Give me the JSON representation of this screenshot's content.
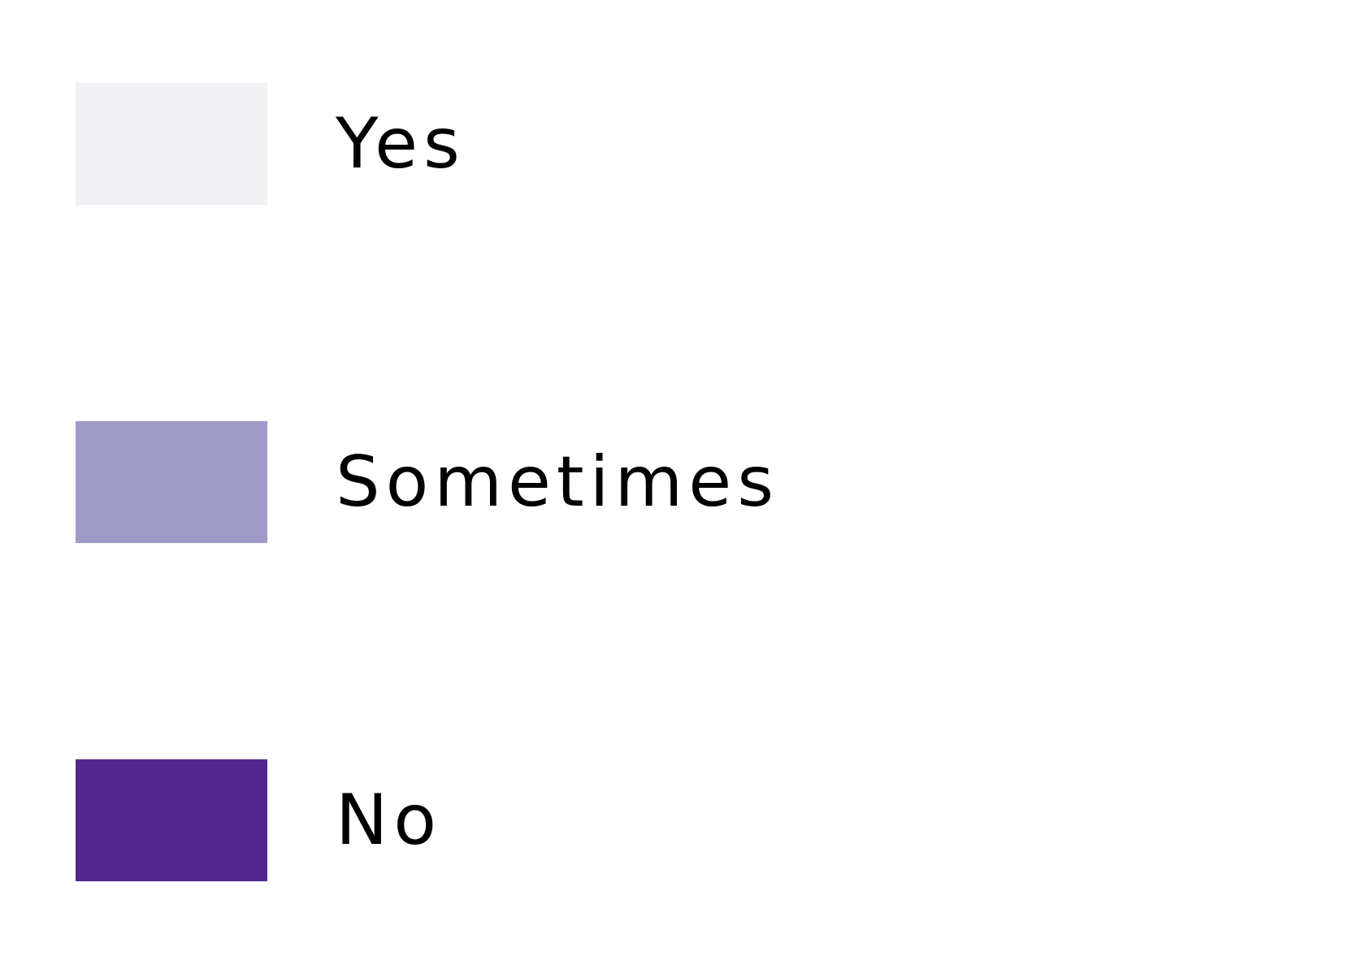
{
  "chart_data": {
    "type": "legend",
    "legend": [
      {
        "label": "Yes",
        "color": "#f0f0f5"
      },
      {
        "label": "Sometimes",
        "color": "#9f9bc9"
      },
      {
        "label": "No",
        "color": "#54278f"
      }
    ]
  }
}
